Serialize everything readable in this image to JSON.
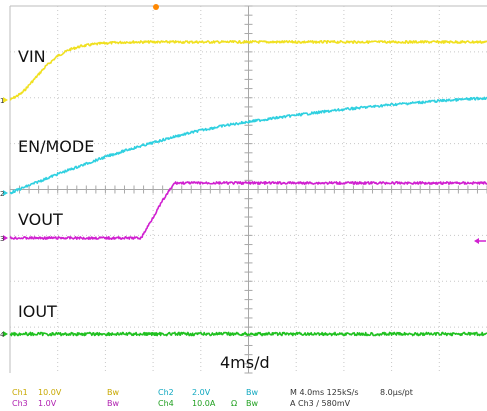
{
  "chart_data": {
    "type": "line",
    "title": "",
    "time_division": "4ms/d",
    "x_unit": "ms",
    "xlim": [
      0,
      40
    ],
    "grid": true,
    "series": [
      {
        "name": "VIN",
        "channel": "Ch1",
        "color": "#f0e020",
        "x": [
          0,
          1,
          2,
          3,
          4,
          5,
          6,
          7,
          8,
          9,
          10,
          12,
          14,
          20,
          30,
          40
        ],
        "y": [
          0.0,
          0.12,
          0.35,
          0.58,
          0.76,
          0.87,
          0.93,
          0.96,
          0.98,
          0.99,
          1.0,
          1.0,
          1.0,
          1.0,
          1.0,
          1.0
        ],
        "unit": "V"
      },
      {
        "name": "EN/MODE",
        "channel": "Ch2",
        "color": "#30d0e0",
        "x": [
          0,
          2,
          4,
          6,
          8,
          10,
          12,
          14,
          16,
          18,
          20,
          24,
          28,
          32,
          36,
          40
        ],
        "y": [
          0.0,
          0.1,
          0.2,
          0.29,
          0.38,
          0.46,
          0.53,
          0.6,
          0.66,
          0.71,
          0.75,
          0.82,
          0.88,
          0.93,
          0.97,
          1.0
        ],
        "unit": "V"
      },
      {
        "name": "VOUT",
        "channel": "Ch3",
        "color": "#d020d0",
        "x": [
          0,
          11,
          12.8,
          13.8,
          20,
          30,
          40
        ],
        "y": [
          0.0,
          0.0,
          0.68,
          1.0,
          1.0,
          1.0,
          1.0
        ],
        "unit": "V"
      },
      {
        "name": "IOUT",
        "channel": "Ch4",
        "color": "#20c020",
        "x": [
          0,
          10,
          20,
          30,
          40
        ],
        "y": [
          0.0,
          0.0,
          0.0,
          0.0,
          0.0
        ],
        "unit": "A"
      }
    ],
    "markers": {
      "ch1": "1",
      "ch2": "2",
      "ch3": "3",
      "ch4": "4"
    }
  },
  "footer": {
    "row1": {
      "ch1": "Ch1",
      "ch1_scale": "10.0V",
      "ch1_bw": "Bw",
      "ch2": "Ch2",
      "ch2_scale": "2.0V",
      "ch2_bw": "Bw",
      "timebase": "M 4.0ms 125kS/s",
      "per_pt": "8.0μs/pt"
    },
    "row2": {
      "ch3": "Ch3",
      "ch3_scale": "1.0V",
      "ch3_bw": "Bw",
      "ch4": "Ch4",
      "ch4_scale": "10.0A",
      "ch4_ohm": "Ω",
      "ch4_bw": "Bw",
      "trigger": "A Ch3 ∕ 580mV"
    }
  }
}
